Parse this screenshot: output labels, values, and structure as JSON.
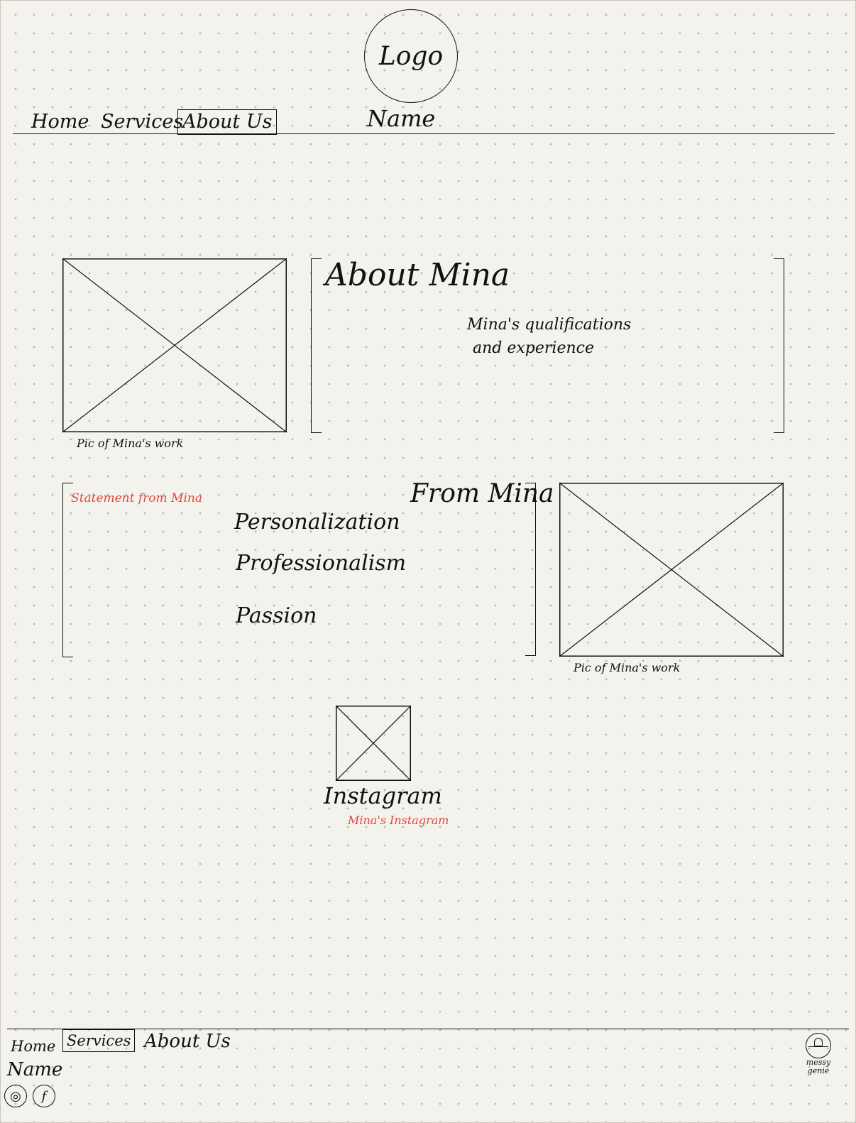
{
  "header": {
    "logo_text": "Logo",
    "name_text": "Name",
    "nav": [
      {
        "label": "Home",
        "active": false
      },
      {
        "label": "Services",
        "active": false
      },
      {
        "label": "About Us",
        "active": true
      }
    ]
  },
  "about": {
    "image_caption": "Pic of Mina's work",
    "heading": "About Mina",
    "body_line_1": "Mina's qualifications",
    "body_line_2": "and experience"
  },
  "from_mina": {
    "annotation": "Statement from Mina",
    "heading": "From Mina",
    "values": [
      "Personalization",
      "Professionalism",
      "Passion"
    ],
    "image_caption": "Pic of Mina's work"
  },
  "instagram": {
    "label": "Instagram",
    "annotation": "Mina's Instagram"
  },
  "footer": {
    "nav": [
      {
        "label": "Home",
        "active": false
      },
      {
        "label": "Services",
        "active": true
      },
      {
        "label": "About Us",
        "active": false
      }
    ],
    "name_text": "Name",
    "social": [
      {
        "icon": "instagram-icon",
        "glyph": "◎"
      },
      {
        "icon": "facebook-icon",
        "glyph": "f"
      }
    ],
    "brand_line_1": "messy",
    "brand_line_2": "genie"
  },
  "colors": {
    "ink": "#111111",
    "annotation_red": "#e2483a",
    "paper": "#f4f2ec"
  }
}
